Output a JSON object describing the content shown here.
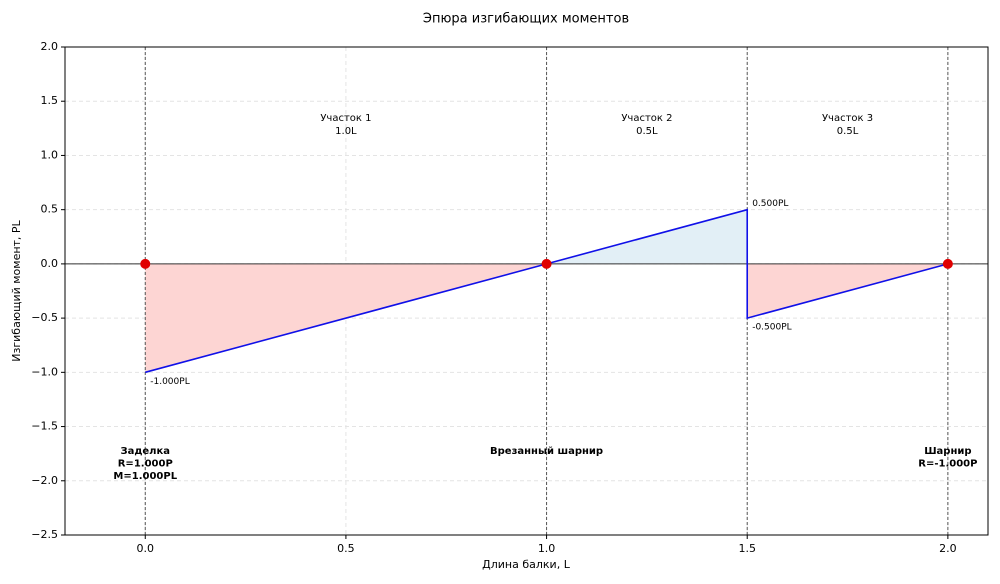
{
  "chart_data": {
    "type": "moment-diagram",
    "title": "Эпюра изгибающих моментов",
    "x_label": "Длина балки, L",
    "y_label": "Изгибающий момент, PL",
    "xlim": [
      -0.2,
      2.1
    ],
    "ylim": [
      -2.5,
      2.0
    ],
    "xticks": [
      {
        "value": 0,
        "label": "0.0"
      },
      0.5,
      {
        "value": 1,
        "label": "1.0"
      },
      1.5,
      {
        "value": 2,
        "label": "2.0"
      }
    ],
    "yticks": [
      {
        "value": -2.5,
        "label": "−2.5"
      },
      {
        "value": -2,
        "label": "−2.0"
      },
      {
        "value": -1.5,
        "label": "−1.5"
      },
      {
        "value": -1,
        "label": "−1.0"
      },
      {
        "value": -0.5,
        "label": "−0.5"
      },
      {
        "value": 0,
        "label": "0.0"
      },
      0.5,
      {
        "value": 1,
        "label": "1.0"
      },
      1.5,
      {
        "value": 2,
        "label": "2.0"
      }
    ],
    "grid": true,
    "series": [
      {
        "name": "M",
        "color": "#1010e8",
        "positive_fill": "#e2eff6",
        "negative_fill": "#fdd5d3",
        "x": [
          0,
          1,
          1.5,
          1.5,
          2
        ],
        "values": [
          -1,
          0,
          0.5,
          -0.5,
          0
        ],
        "value_labels": [
          "-1.000PL",
          null,
          "0.500PL",
          "-0.500PL",
          null
        ]
      }
    ],
    "sections": [
      {
        "name": "Участок 1",
        "length": "1.0L",
        "start": 0,
        "end": 1
      },
      {
        "name": "Участок 2",
        "length": "0.5L",
        "start": 1,
        "end": 1.5
      },
      {
        "name": "Участок 3",
        "length": "0.5L",
        "start": 1.5,
        "end": 2
      }
    ],
    "supports": [
      {
        "x": 0,
        "y": 0,
        "lines": [
          "Заделка",
          "R=1.000P",
          "M=1.000PL"
        ]
      },
      {
        "x": 1,
        "y": 0,
        "lines": [
          "Врезанный шарнир"
        ]
      },
      {
        "x": 2,
        "y": 0,
        "lines": [
          "Шарнир",
          "R=-1.000P"
        ]
      }
    ],
    "support_color": "#e00000"
  }
}
